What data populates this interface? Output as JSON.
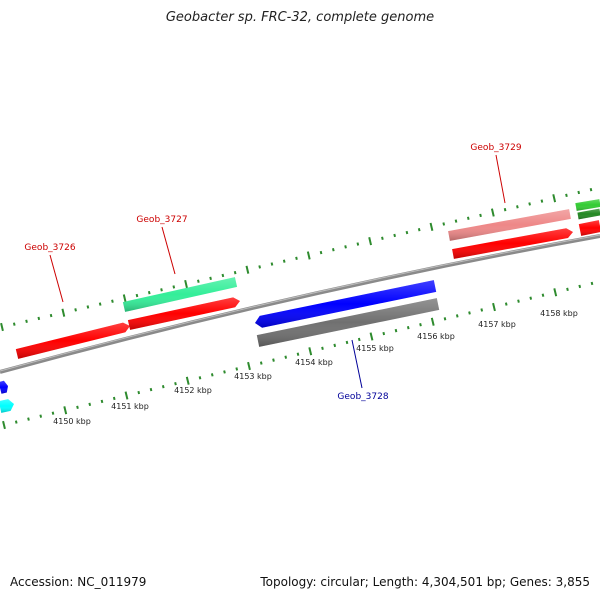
{
  "title": "Geobacter sp. FRC-32, complete genome",
  "footer": {
    "accession": "Accession: NC_011979",
    "summary": "Topology: circular; Length: 4,304,501 bp; Genes: 3,855"
  },
  "colors": {
    "backbone": "#8a8a8a",
    "tick": "#2e8b2e",
    "label_red": "#cc0000",
    "label_blue": "#000099"
  },
  "scale_labels": [
    "4150 kbp",
    "4151 kbp",
    "4152 kbp",
    "4153 kbp",
    "4154 kbp",
    "4155 kbp",
    "4156 kbp",
    "4157 kbp",
    "4158 kbp"
  ],
  "gene_labels": [
    {
      "name": "Geob_3726",
      "color": "#cc0000"
    },
    {
      "name": "Geob_3727",
      "color": "#cc0000"
    },
    {
      "name": "Geob_3729",
      "color": "#cc0000"
    },
    {
      "name": "Geob_3728",
      "color": "#000099"
    }
  ],
  "features": [
    {
      "id": "feat-red-1",
      "color": "#ff0000"
    },
    {
      "id": "feat-green-1",
      "color": "#33ee99"
    },
    {
      "id": "feat-red-2",
      "color": "#ff0000"
    },
    {
      "id": "feat-blue-1",
      "color": "#0000ff"
    },
    {
      "id": "feat-gray-1",
      "color": "#707070"
    },
    {
      "id": "feat-pink-1",
      "color": "#ee8888"
    },
    {
      "id": "feat-red-3",
      "color": "#ff0000"
    },
    {
      "id": "feat-green-2",
      "color": "#33cc33"
    },
    {
      "id": "feat-darkgreen-1",
      "color": "#228822"
    },
    {
      "id": "feat-red-4",
      "color": "#ff0000"
    },
    {
      "id": "feat-blue-left",
      "color": "#0000ff"
    },
    {
      "id": "feat-cyan-left",
      "color": "#00ffff"
    }
  ]
}
